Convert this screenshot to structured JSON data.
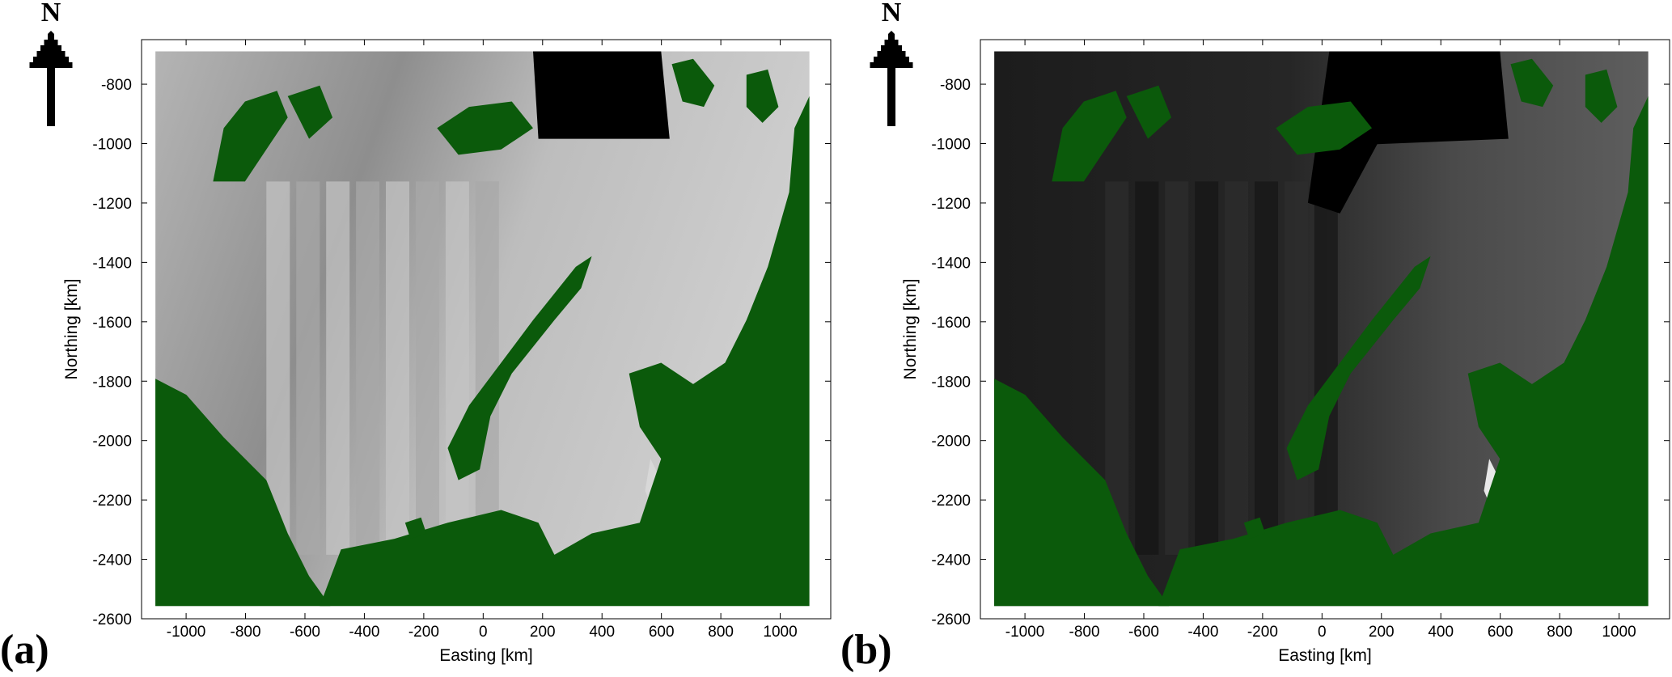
{
  "chart_data": [
    {
      "type": "map",
      "panel_label": "(a)",
      "north_label": "N",
      "xlabel": "Easting [km]",
      "ylabel": "Northing [km]",
      "xlim": [
        -1150,
        1170
      ],
      "ylim": [
        -2600,
        -650
      ],
      "xticks": [
        -1000,
        -800,
        -600,
        -400,
        -200,
        0,
        200,
        400,
        600,
        800,
        1000
      ],
      "yticks": [
        -800,
        -1000,
        -1200,
        -1400,
        -1600,
        -1800,
        -2000,
        -2200,
        -2400,
        -2600
      ],
      "land_color": "#0b5a0b"
    },
    {
      "type": "map",
      "panel_label": "(b)",
      "north_label": "N",
      "xlabel": "Easting [km]",
      "ylabel": "Northing [km]",
      "xlim": [
        -1150,
        1170
      ],
      "ylim": [
        -2600,
        -650
      ],
      "xticks": [
        -1000,
        -800,
        -600,
        -400,
        -200,
        0,
        200,
        400,
        600,
        800,
        1000
      ],
      "yticks": [
        -800,
        -1000,
        -1200,
        -1400,
        -1600,
        -1800,
        -2000,
        -2200,
        -2400,
        -2600
      ],
      "land_color": "#0b5a0b"
    }
  ]
}
